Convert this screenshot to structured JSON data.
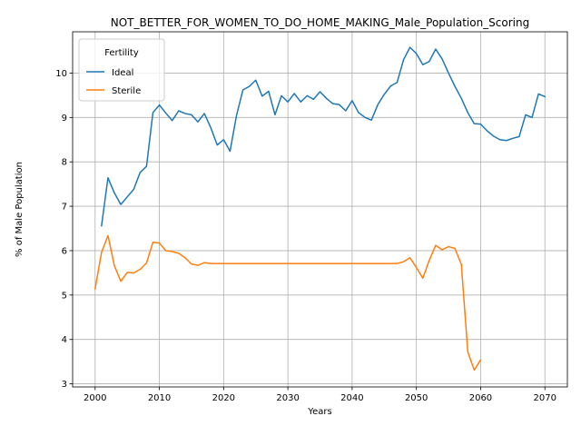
{
  "chart_data": {
    "type": "line",
    "title": "NOT_BETTER_FOR_WOMEN_TO_DO_HOME_MAKING_Male_Population_Scoring",
    "xlabel": "Years",
    "ylabel": "% of Male Population",
    "xlim": [
      1996.5,
      2073.5
    ],
    "ylim": [
      2.93,
      10.93
    ],
    "xticks": [
      2000,
      2010,
      2020,
      2030,
      2040,
      2050,
      2060,
      2070
    ],
    "yticks": [
      3,
      4,
      5,
      6,
      7,
      8,
      9,
      10
    ],
    "grid": true,
    "legend_title": "Fertility",
    "legend_position": "top-left",
    "series": [
      {
        "name": "Ideal",
        "color": "#1f77b4",
        "x": [
          2001,
          2002,
          2003,
          2004,
          2005,
          2006,
          2007,
          2008,
          2009,
          2010,
          2011,
          2012,
          2013,
          2014,
          2015,
          2016,
          2017,
          2018,
          2019,
          2020,
          2021,
          2022,
          2023,
          2024,
          2025,
          2026,
          2027,
          2028,
          2029,
          2030,
          2031,
          2032,
          2033,
          2034,
          2035,
          2036,
          2037,
          2038,
          2039,
          2040,
          2041,
          2042,
          2043,
          2044,
          2045,
          2046,
          2047,
          2048,
          2049,
          2050,
          2051,
          2052,
          2053,
          2054,
          2055,
          2056,
          2057,
          2058,
          2059,
          2060,
          2061,
          2062,
          2063,
          2064,
          2065,
          2066,
          2067,
          2068,
          2069,
          2070
        ],
        "y": [
          6.56,
          7.64,
          7.3,
          7.04,
          7.21,
          7.38,
          7.76,
          7.9,
          9.11,
          9.28,
          9.1,
          8.93,
          9.15,
          9.09,
          9.06,
          8.9,
          9.09,
          8.77,
          8.38,
          8.5,
          8.24,
          9.04,
          9.62,
          9.7,
          9.84,
          9.48,
          9.59,
          9.06,
          9.49,
          9.35,
          9.54,
          9.35,
          9.49,
          9.41,
          9.58,
          9.43,
          9.31,
          9.29,
          9.15,
          9.38,
          9.11,
          9.0,
          8.94,
          9.29,
          9.52,
          9.71,
          9.79,
          10.3,
          10.58,
          10.44,
          10.19,
          10.26,
          10.54,
          10.32,
          10.0,
          9.7,
          9.43,
          9.11,
          8.86,
          8.85,
          8.7,
          8.58,
          8.5,
          8.48,
          8.53,
          8.57,
          9.06,
          9.0,
          9.53,
          9.47
        ]
      },
      {
        "name": "Sterile",
        "color": "#ff7f0e",
        "x": [
          2000,
          2001,
          2002,
          2003,
          2004,
          2005,
          2006,
          2007,
          2008,
          2009,
          2010,
          2011,
          2012,
          2013,
          2014,
          2015,
          2016,
          2017,
          2018,
          2019,
          2020,
          2021,
          2022,
          2023,
          2024,
          2025,
          2026,
          2027,
          2028,
          2029,
          2030,
          2031,
          2032,
          2033,
          2034,
          2035,
          2036,
          2037,
          2038,
          2039,
          2040,
          2041,
          2042,
          2043,
          2044,
          2045,
          2046,
          2047,
          2048,
          2049,
          2050,
          2051,
          2052,
          2053,
          2054,
          2055,
          2056,
          2057,
          2058,
          2059,
          2060
        ],
        "y": [
          5.14,
          5.96,
          6.34,
          5.66,
          5.31,
          5.51,
          5.5,
          5.58,
          5.72,
          6.19,
          6.17,
          6.0,
          5.98,
          5.94,
          5.84,
          5.7,
          5.67,
          5.73,
          5.71,
          5.71,
          5.71,
          5.71,
          5.71,
          5.71,
          5.71,
          5.71,
          5.71,
          5.71,
          5.71,
          5.71,
          5.71,
          5.71,
          5.71,
          5.71,
          5.71,
          5.71,
          5.71,
          5.71,
          5.71,
          5.71,
          5.71,
          5.71,
          5.71,
          5.71,
          5.71,
          5.71,
          5.71,
          5.71,
          5.75,
          5.84,
          5.62,
          5.38,
          5.78,
          6.12,
          6.02,
          6.09,
          6.05,
          5.69,
          3.72,
          3.31,
          3.54
        ]
      }
    ]
  }
}
